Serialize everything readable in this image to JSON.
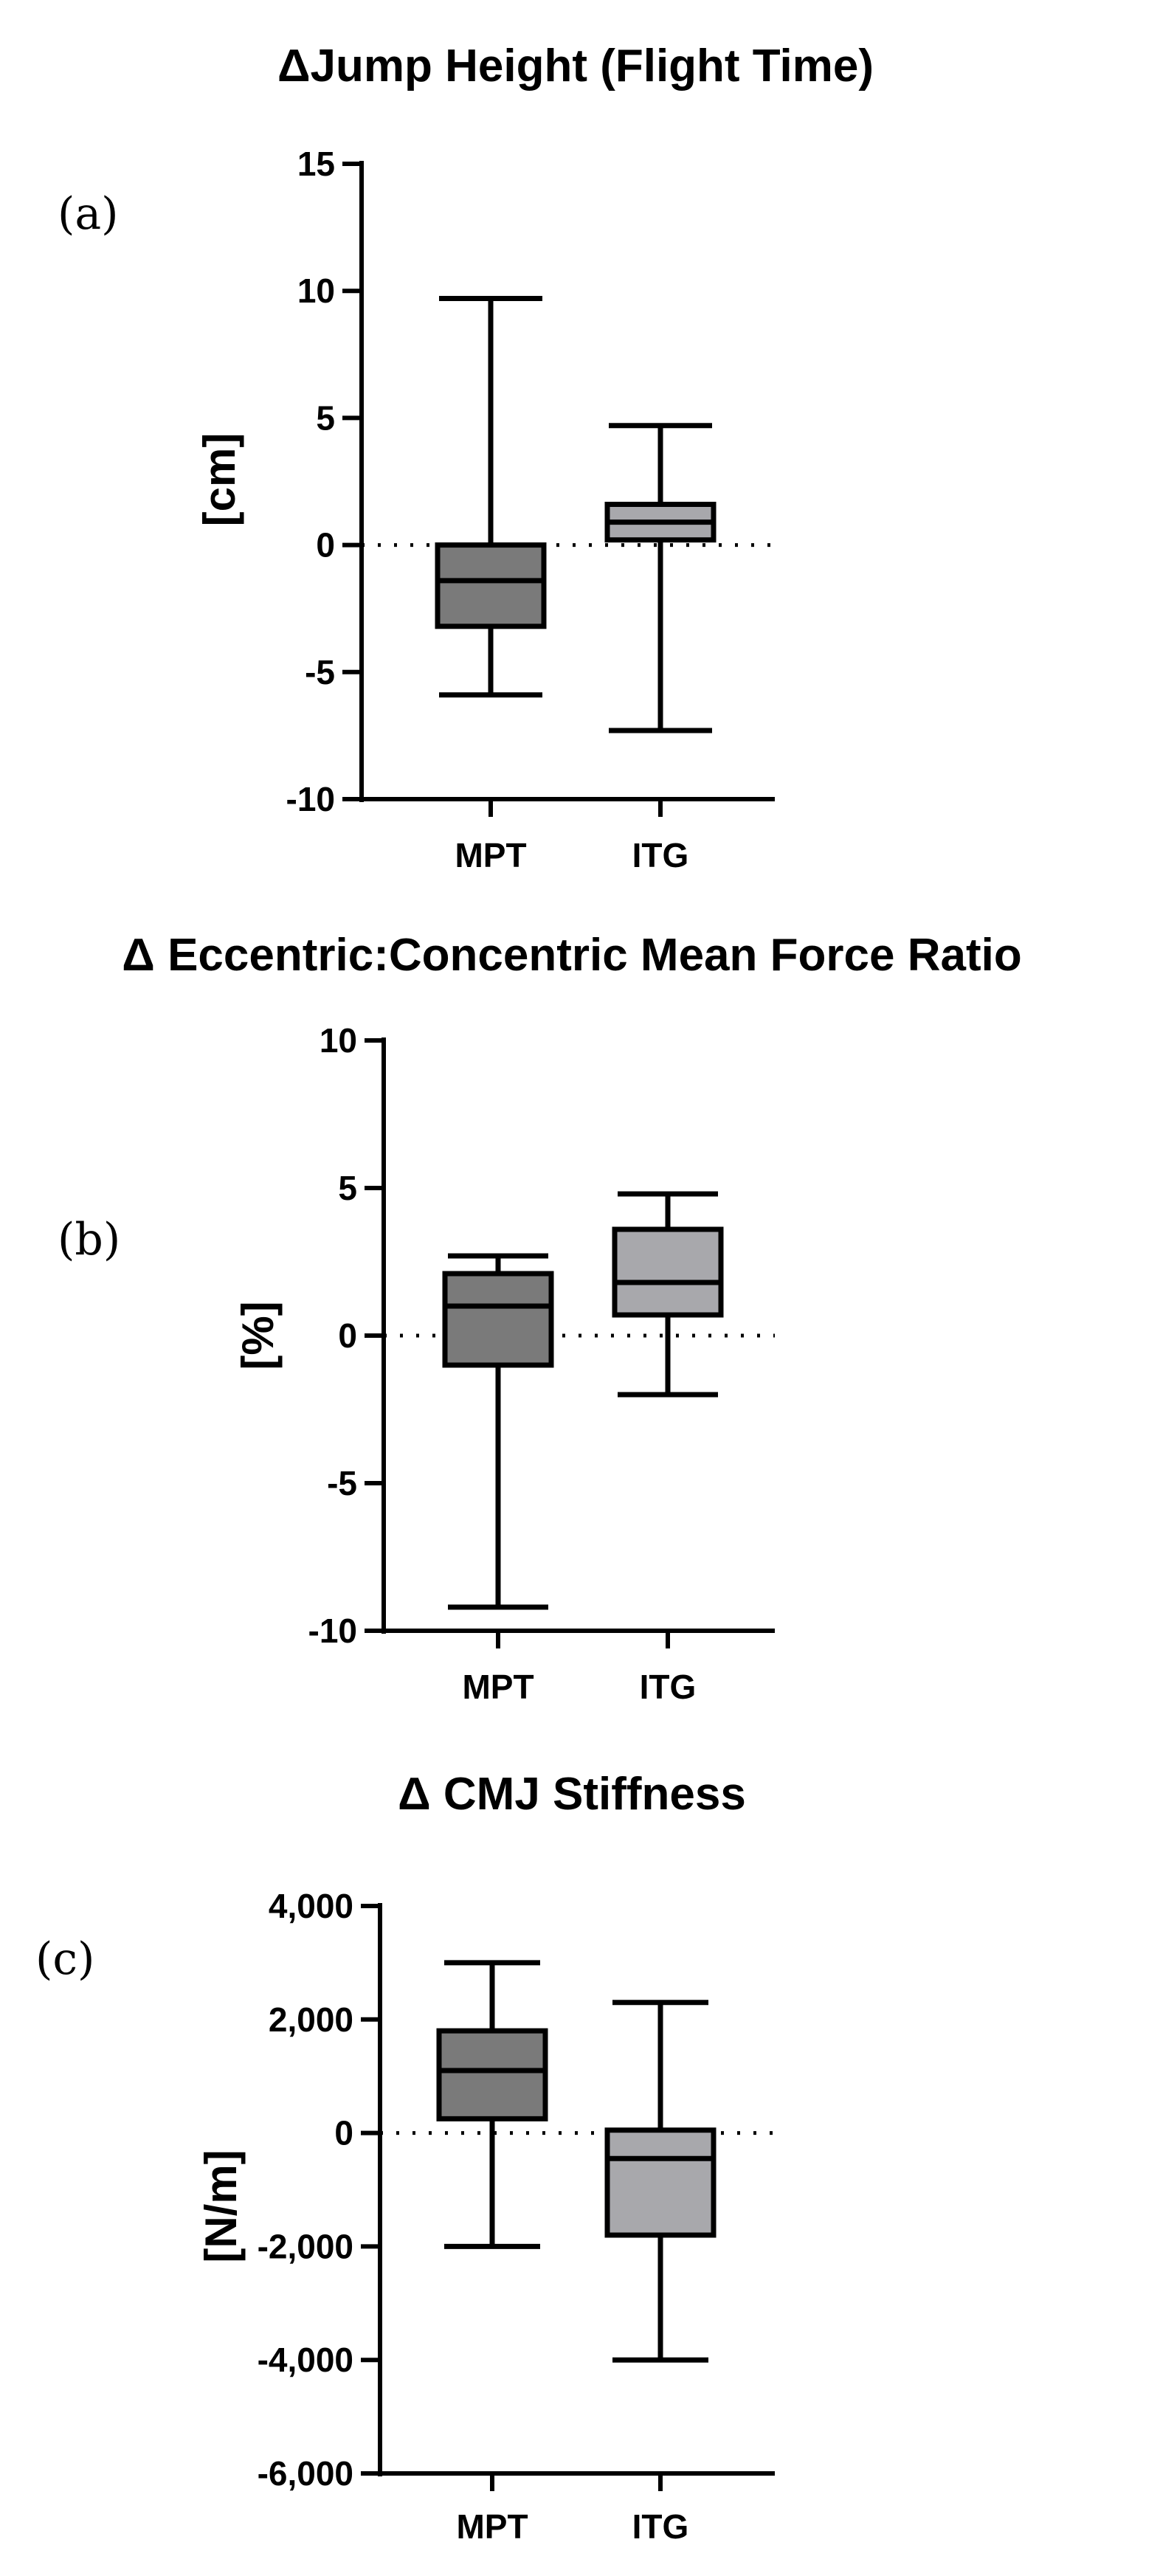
{
  "chart_data": [
    {
      "type": "box",
      "panel_label": "(a)",
      "title": "ΔJump Height (Flight Time)",
      "xlabel": "",
      "ylabel": "[cm]",
      "ylim": [
        -10,
        15
      ],
      "yticks": [
        -10,
        -5,
        0,
        5,
        10,
        15
      ],
      "ytick_labels": [
        "-10",
        "-5",
        "0",
        "5",
        "10",
        "15"
      ],
      "reference_line": 0,
      "categories": [
        "MPT",
        "ITG"
      ],
      "boxes": [
        {
          "name": "MPT",
          "min": -5.9,
          "q1": -3.2,
          "median": -1.4,
          "q3": 0.0,
          "max": 9.7,
          "color": "#7a7a7a"
        },
        {
          "name": "ITG",
          "min": -7.3,
          "q1": 0.2,
          "median": 0.9,
          "q3": 1.6,
          "max": 4.7,
          "color": "#a8a8ac"
        }
      ]
    },
    {
      "type": "box",
      "panel_label": "(b)",
      "title": "Δ Eccentric:Concentric Mean Force Ratio",
      "xlabel": "",
      "ylabel": "[%]",
      "ylim": [
        -10,
        10
      ],
      "yticks": [
        -10,
        -5,
        0,
        5,
        10
      ],
      "ytick_labels": [
        "-10",
        "-5",
        "0",
        "5",
        "10"
      ],
      "reference_line": 0,
      "categories": [
        "MPT",
        "ITG"
      ],
      "boxes": [
        {
          "name": "MPT",
          "min": -9.2,
          "q1": -1.0,
          "median": 1.0,
          "q3": 2.1,
          "max": 2.7,
          "color": "#7a7a7a"
        },
        {
          "name": "ITG",
          "min": -2.0,
          "q1": 0.7,
          "median": 1.8,
          "q3": 3.6,
          "max": 4.8,
          "color": "#a8a8ac"
        }
      ]
    },
    {
      "type": "box",
      "panel_label": "(c)",
      "title": "Δ CMJ Stiffness",
      "xlabel": "",
      "ylabel": "[N/m]",
      "ylim": [
        -6000,
        4000
      ],
      "yticks": [
        -6000,
        -4000,
        -2000,
        0,
        2000,
        4000
      ],
      "ytick_labels": [
        "-6,000",
        "-4,000",
        "-2,000",
        "0",
        "2,000",
        "4,000"
      ],
      "reference_line": 0,
      "categories": [
        "MPT",
        "ITG"
      ],
      "boxes": [
        {
          "name": "MPT",
          "min": -2000,
          "q1": 250,
          "median": 1100,
          "q3": 1800,
          "max": 3000,
          "color": "#7a7a7a"
        },
        {
          "name": "ITG",
          "min": -4000,
          "q1": -1800,
          "median": -450,
          "q3": 50,
          "max": 2300,
          "color": "#a8a8ac"
        }
      ]
    }
  ]
}
